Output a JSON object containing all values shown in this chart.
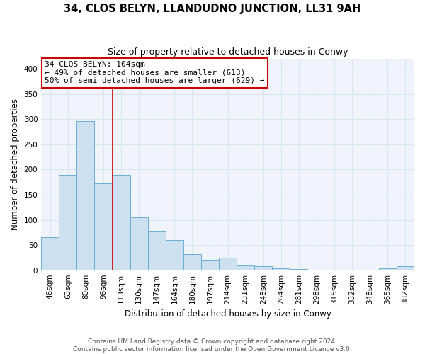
{
  "title": "34, CLOS BELYN, LLANDUDNO JUNCTION, LL31 9AH",
  "subtitle": "Size of property relative to detached houses in Conwy",
  "xlabel": "Distribution of detached houses by size in Conwy",
  "ylabel": "Number of detached properties",
  "categories": [
    "46sqm",
    "63sqm",
    "80sqm",
    "96sqm",
    "113sqm",
    "130sqm",
    "147sqm",
    "164sqm",
    "180sqm",
    "197sqm",
    "214sqm",
    "231sqm",
    "248sqm",
    "264sqm",
    "281sqm",
    "298sqm",
    "315sqm",
    "332sqm",
    "348sqm",
    "365sqm",
    "382sqm"
  ],
  "values": [
    65,
    190,
    297,
    172,
    190,
    105,
    78,
    60,
    32,
    21,
    25,
    10,
    8,
    4,
    3,
    1,
    0,
    0,
    0,
    4,
    8
  ],
  "bar_color": "#cce0f0",
  "bar_edge_color": "#6aaed6",
  "vline_x": 3.5,
  "vline_color": "#cc0000",
  "annotation_title": "34 CLOS BELYN: 104sqm",
  "annotation_line1": "← 49% of detached houses are smaller (613)",
  "annotation_line2": "50% of semi-detached houses are larger (629) →",
  "annotation_box_color": "#ffffff",
  "annotation_box_edge": "#cc0000",
  "ylim": [
    0,
    420
  ],
  "yticks": [
    0,
    50,
    100,
    150,
    200,
    250,
    300,
    350,
    400
  ],
  "footer_line1": "Contains HM Land Registry data © Crown copyright and database right 2024.",
  "footer_line2": "Contains public sector information licensed under the Open Government Licence v3.0.",
  "grid_color": "#d8e4f0",
  "title_fontsize": 10.5,
  "subtitle_fontsize": 9,
  "axis_label_fontsize": 8.5,
  "tick_fontsize": 7.5,
  "footer_fontsize": 6.5,
  "ann_fontsize": 8
}
